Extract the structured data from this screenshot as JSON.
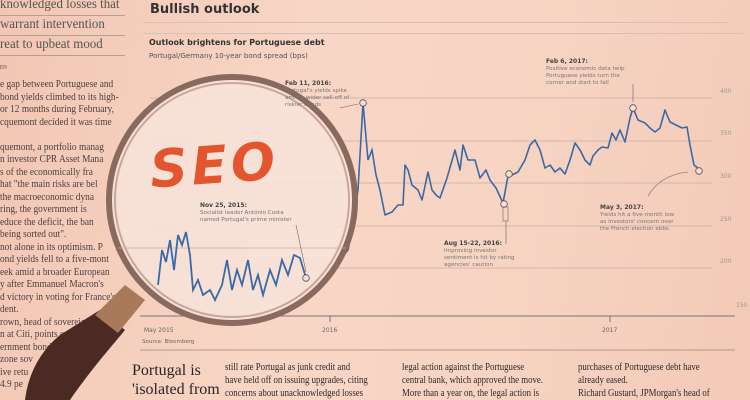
{
  "left_column": {
    "headline_lines": [
      "knowledged losses that",
      "warrant intervention",
      "reat to upbeat mood"
    ],
    "byline": "EN",
    "body_lines": [
      "e gap between Portuguese and",
      "bond yields climbed to its high-",
      "or 12 months during February,",
      "cquemont decided it was time",
      "",
      "quemont, a portfolio manag",
      "n investor CPR Asset Mana",
      "s of the economically fra",
      "hat \"the main risks are bel",
      "the macroeconomic dyna",
      "ring, the government is",
      "educe the deficit, the ban",
      "being sorted out\".",
      "not alone in its optimism. P",
      "ond yields fell to a five-mont",
      "eek amid a broader European",
      "y after Emmanuel Macron's",
      "d victory in voting for France's",
      "dent.",
      "rown, head of sovereign d",
      "n at Citi, points out th",
      "ernment bond",
      "zone sov",
      "ive retu",
      "4.9 pe"
    ]
  },
  "section_title": "Bullish outlook",
  "chart": {
    "title": "Outlook brightens for Portuguese debt",
    "subtitle": "Portugal/Germany 10-year bond spread (bps)",
    "y_ticks": [
      "400",
      "350",
      "300",
      "250",
      "200",
      "150"
    ],
    "x_ticks": [
      "May 2015",
      "2016",
      "2017"
    ],
    "source": "Source: Bloomberg",
    "line_color": "#3a6aa6",
    "annotations": [
      {
        "date": "Feb 11, 2016:",
        "text": [
          "Portugal's yields spike",
          "amid a wider sell-off of",
          "riskier bonds"
        ]
      },
      {
        "date": "Nov 25, 2015:",
        "text": [
          "Socialist leader António Costa",
          "named Portugal's prime minister"
        ]
      },
      {
        "date": "Aug 15-22, 2016:",
        "text": [
          "Improving investor",
          "sentiment is hit by rating",
          "agencies' caution"
        ]
      },
      {
        "date": "Feb 6, 2017:",
        "text": [
          "Positive economic data help",
          "Portuguese yields turn the",
          "corner and start to fall"
        ]
      },
      {
        "date": "May 3, 2017:",
        "text": [
          "Yields hit a five-month low",
          "as investors' concern over",
          "the French election ebbs"
        ]
      }
    ]
  },
  "story": {
    "headline_lines": [
      "Portugal is",
      "'isolated from"
    ],
    "columns": [
      [
        "still rate Portugal as junk credit and",
        "have held off on issuing upgrades, citing",
        "concerns about unacknowledged losses"
      ],
      [
        "legal action against the Portuguese",
        "central bank, which approved the move.",
        "  More than a year on, the legal action is"
      ],
      [
        "purchases of Portuguese debt have",
        "already eased.",
        "  Richard Gustard, JPMorgan's head of"
      ]
    ]
  },
  "lens_text": "SEO",
  "lens_color": "#e2552e"
}
